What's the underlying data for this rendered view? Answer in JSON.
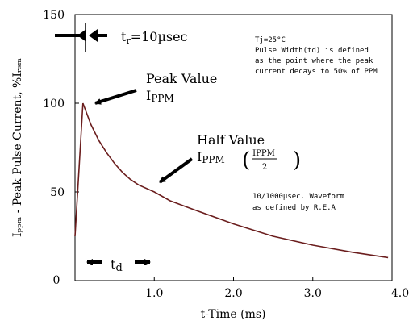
{
  "chart_data": {
    "type": "line",
    "title": "",
    "xlabel": "t-Time (ms)",
    "ylabel": "Iₚₚₘ - Peak Pulse Current, %Iᵣₛₘ",
    "xlim": [
      0,
      4.0
    ],
    "ylim": [
      0,
      150
    ],
    "x_ticks": [
      "0",
      "1.0",
      "2.0",
      "3.0",
      "4.0"
    ],
    "y_ticks": [
      "0",
      "50",
      "100",
      "150"
    ],
    "grid": false,
    "line_color": "#6b1e1e",
    "series": [
      {
        "values": [
          [
            0,
            25
          ],
          [
            0.1,
            100
          ],
          [
            0.2,
            88
          ],
          [
            0.3,
            79
          ],
          [
            0.4,
            72
          ],
          [
            0.5,
            66
          ],
          [
            0.6,
            61
          ],
          [
            0.7,
            57
          ],
          [
            0.8,
            54
          ],
          [
            1.0,
            50
          ],
          [
            1.2,
            45
          ],
          [
            1.5,
            40
          ],
          [
            2.0,
            32
          ],
          [
            2.5,
            25
          ],
          [
            3.0,
            20
          ],
          [
            3.5,
            16
          ],
          [
            3.95,
            13
          ]
        ]
      }
    ],
    "annotations": {
      "tr": {
        "t": "t",
        "sub": "r",
        "rest": "=10µsec"
      },
      "td": {
        "t": "t",
        "sub": "d"
      },
      "peak": {
        "line1": "Peak Value",
        "i": "I",
        "sub": "PPM"
      },
      "half": {
        "line1": "Half Value",
        "i": "I",
        "sub": "PPM",
        "frac_num": "IPPM",
        "frac_den": "2"
      },
      "note_top": [
        "Tj=25°C",
        "Pulse Width(td) is defined",
        "as the point where the peak",
        "current decays to 50% of PPM"
      ],
      "note_bottom": [
        "10/1000µsec. Waveform",
        "as defined by R.E.A"
      ]
    }
  }
}
